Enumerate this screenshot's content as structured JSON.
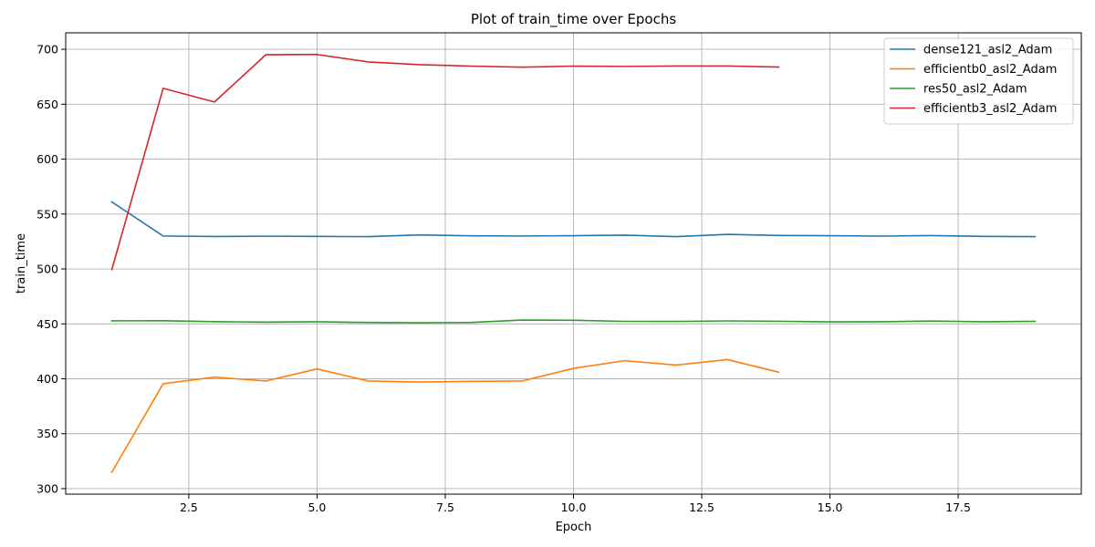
{
  "chart_data": {
    "type": "line",
    "title": "Plot of train_time over Epochs",
    "xlabel": "Epoch",
    "ylabel": "train_time",
    "xlim": [
      0.1,
      19.9
    ],
    "ylim": [
      295,
      715
    ],
    "xticks": [
      2.5,
      5.0,
      7.5,
      10.0,
      12.5,
      15.0,
      17.5
    ],
    "xtick_labels": [
      "2.5",
      "5.0",
      "7.5",
      "10.0",
      "12.5",
      "15.0",
      "17.5"
    ],
    "yticks": [
      300,
      350,
      400,
      450,
      500,
      550,
      600,
      650,
      700
    ],
    "ytick_labels": [
      "300",
      "350",
      "400",
      "450",
      "500",
      "550",
      "600",
      "650",
      "700"
    ],
    "grid": true,
    "legend_position": "top-right",
    "series": [
      {
        "name": "dense121_asl2_Adam",
        "color": "#1f77b4",
        "x": [
          1,
          2,
          3,
          4,
          5,
          6,
          7,
          8,
          9,
          10,
          11,
          12,
          13,
          14,
          15,
          16,
          17,
          18,
          19
        ],
        "values": [
          561,
          530,
          529.5,
          529.8,
          529.6,
          529.4,
          531,
          530.2,
          530,
          530.3,
          530.8,
          529.4,
          531.5,
          530.5,
          530.3,
          529.9,
          530.4,
          529.6,
          529.4
        ]
      },
      {
        "name": "efficientb0_asl2_Adam",
        "color": "#ff7f0e",
        "x": [
          1,
          2,
          3,
          4,
          5,
          6,
          7,
          8,
          9,
          10,
          11,
          12,
          13,
          14
        ],
        "values": [
          315,
          395.5,
          401.5,
          398,
          409,
          398,
          397,
          397.7,
          398,
          409.5,
          416.5,
          412.5,
          417.5,
          406
        ]
      },
      {
        "name": "res50_asl2_Adam",
        "color": "#2ca02c",
        "x": [
          1,
          2,
          3,
          4,
          5,
          6,
          7,
          8,
          9,
          10,
          11,
          12,
          13,
          14,
          15,
          16,
          17,
          18,
          19
        ],
        "values": [
          452.8,
          452.9,
          452,
          451.6,
          451.9,
          451.3,
          451,
          451.3,
          453.5,
          453.3,
          452.3,
          452.2,
          452.7,
          452.4,
          451.8,
          451.9,
          452.6,
          451.9,
          452.3
        ]
      },
      {
        "name": "efficientb3_asl2_Adam",
        "color": "#d62728",
        "x": [
          1,
          2,
          3,
          4,
          5,
          6,
          7,
          8,
          9,
          10,
          11,
          12,
          13,
          14
        ],
        "values": [
          499.5,
          664.5,
          652,
          695,
          695.3,
          688.5,
          686,
          684.7,
          683.7,
          684.7,
          684.4,
          684.8,
          684.8,
          683.8
        ]
      }
    ]
  }
}
